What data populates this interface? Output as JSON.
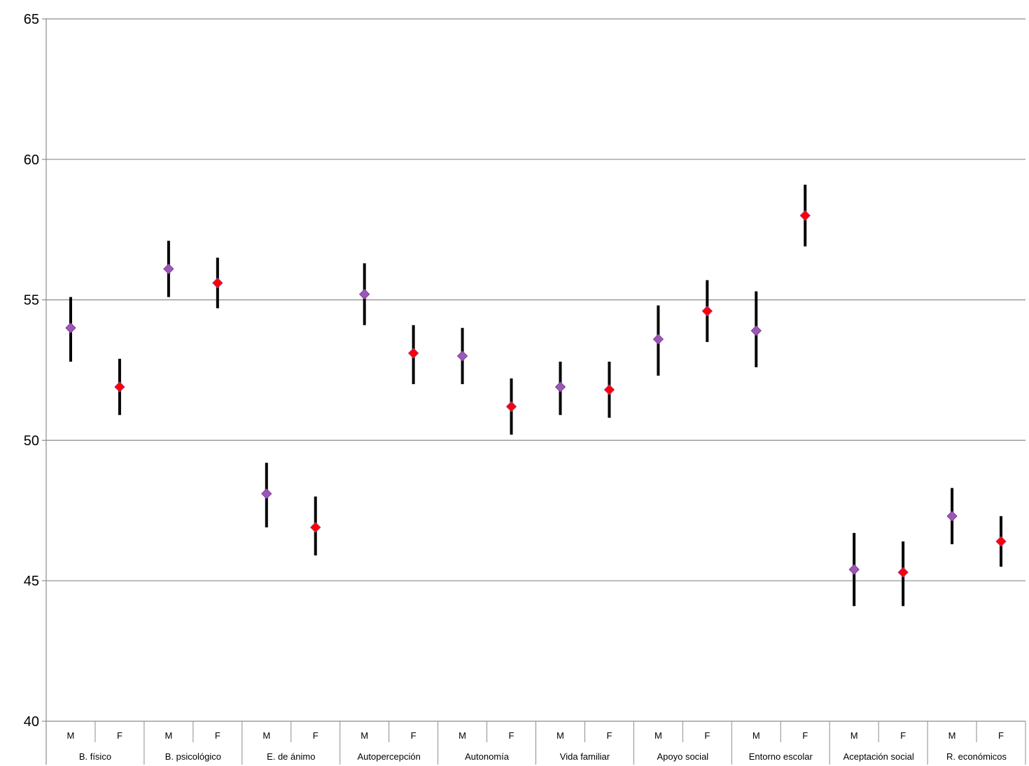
{
  "chart_data": {
    "type": "scatter",
    "title": "",
    "xlabel": "",
    "ylabel": "",
    "ylim": [
      40,
      65
    ],
    "yticks": [
      "40",
      "45",
      "50",
      "55",
      "60",
      "65"
    ],
    "grid": "horizontal",
    "groups": [
      "B. físico",
      "B. psicológico",
      "E. de ánimo",
      "Autopercepción",
      "Autonomía",
      "Vida familiar",
      "Apoyo social",
      "Entorno escolar",
      "Aceptación social",
      "R. económicos"
    ],
    "subgroups": [
      "M",
      "F"
    ],
    "series": [
      {
        "key": "M",
        "color": "#9b59b6",
        "points": [
          {
            "mean": 54.0,
            "low": 52.8,
            "high": 55.1
          },
          {
            "mean": 56.1,
            "low": 55.1,
            "high": 57.1
          },
          {
            "mean": 48.1,
            "low": 46.9,
            "high": 49.2
          },
          {
            "mean": 55.2,
            "low": 54.1,
            "high": 56.3
          },
          {
            "mean": 53.0,
            "low": 52.0,
            "high": 54.0
          },
          {
            "mean": 51.9,
            "low": 50.9,
            "high": 52.8
          },
          {
            "mean": 53.6,
            "low": 52.3,
            "high": 54.8
          },
          {
            "mean": 53.9,
            "low": 52.6,
            "high": 55.3
          },
          {
            "mean": 45.4,
            "low": 44.1,
            "high": 46.7
          },
          {
            "mean": 47.3,
            "low": 46.3,
            "high": 48.3
          }
        ]
      },
      {
        "key": "F",
        "color": "#ff0000",
        "points": [
          {
            "mean": 51.9,
            "low": 50.9,
            "high": 52.9
          },
          {
            "mean": 55.6,
            "low": 54.7,
            "high": 56.5
          },
          {
            "mean": 46.9,
            "low": 45.9,
            "high": 48.0
          },
          {
            "mean": 53.1,
            "low": 52.0,
            "high": 54.1
          },
          {
            "mean": 51.2,
            "low": 50.2,
            "high": 52.2
          },
          {
            "mean": 51.8,
            "low": 50.8,
            "high": 52.8
          },
          {
            "mean": 54.6,
            "low": 53.5,
            "high": 55.7
          },
          {
            "mean": 58.0,
            "low": 56.9,
            "high": 59.1
          },
          {
            "mean": 45.3,
            "low": 44.1,
            "high": 46.4
          },
          {
            "mean": 46.4,
            "low": 45.5,
            "high": 47.3
          }
        ]
      }
    ]
  }
}
